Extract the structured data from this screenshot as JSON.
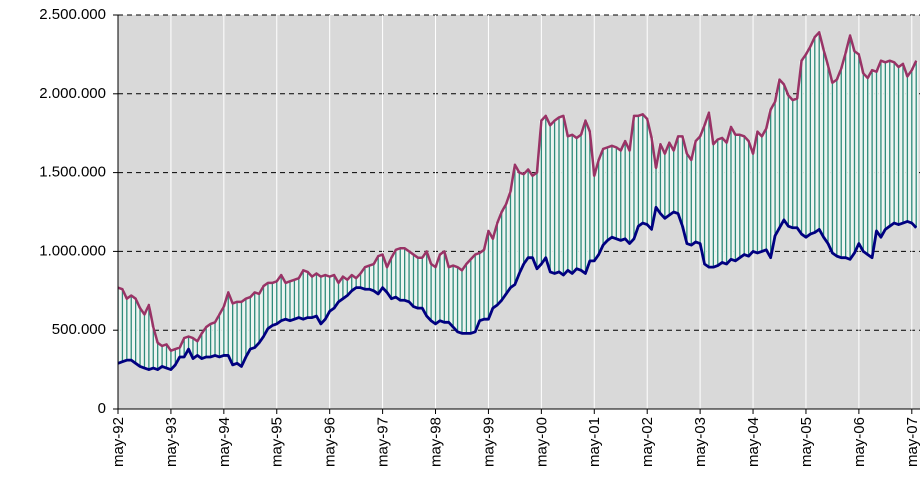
{
  "chart_data": {
    "type": "band-line",
    "categories": [
      "may-92",
      null,
      null,
      null,
      null,
      null,
      null,
      null,
      null,
      null,
      null,
      null,
      "may-93",
      null,
      null,
      null,
      null,
      null,
      null,
      null,
      null,
      null,
      null,
      null,
      "may-94",
      null,
      null,
      null,
      null,
      null,
      null,
      null,
      null,
      null,
      null,
      null,
      "may-95",
      null,
      null,
      null,
      null,
      null,
      null,
      null,
      null,
      null,
      null,
      null,
      "may-96",
      null,
      null,
      null,
      null,
      null,
      null,
      null,
      null,
      null,
      null,
      null,
      "may-97",
      null,
      null,
      null,
      null,
      null,
      null,
      null,
      null,
      null,
      null,
      null,
      "may-98",
      null,
      null,
      null,
      null,
      null,
      null,
      null,
      null,
      null,
      null,
      null,
      "may-99",
      null,
      null,
      null,
      null,
      null,
      null,
      null,
      null,
      null,
      null,
      null,
      "may-00",
      null,
      null,
      null,
      null,
      null,
      null,
      null,
      null,
      null,
      null,
      null,
      "may-01",
      null,
      null,
      null,
      null,
      null,
      null,
      null,
      null,
      null,
      null,
      null,
      "may-02",
      null,
      null,
      null,
      null,
      null,
      null,
      null,
      null,
      null,
      null,
      null,
      "may-03",
      null,
      null,
      null,
      null,
      null,
      null,
      null,
      null,
      null,
      null,
      null,
      "may-04",
      null,
      null,
      null,
      null,
      null,
      null,
      null,
      null,
      null,
      null,
      null,
      "may-05",
      null,
      null,
      null,
      null,
      null,
      null,
      null,
      null,
      null,
      null,
      null,
      "may-06",
      null,
      null,
      null,
      null,
      null,
      null,
      null,
      null,
      null,
      null,
      null,
      "may-07",
      null
    ],
    "series": [
      {
        "color": "#993366",
        "values": [
          770000,
          760000,
          700000,
          720000,
          700000,
          640000,
          600000,
          660000,
          520000,
          420000,
          400000,
          410000,
          370000,
          380000,
          390000,
          450000,
          460000,
          450000,
          430000,
          480000,
          520000,
          540000,
          550000,
          600000,
          650000,
          740000,
          670000,
          680000,
          680000,
          700000,
          710000,
          740000,
          730000,
          780000,
          800000,
          800000,
          810000,
          850000,
          800000,
          810000,
          820000,
          830000,
          880000,
          870000,
          840000,
          860000,
          840000,
          850000,
          840000,
          850000,
          800000,
          840000,
          820000,
          850000,
          830000,
          860000,
          900000,
          910000,
          920000,
          970000,
          980000,
          900000,
          960000,
          1010000,
          1020000,
          1020000,
          1000000,
          980000,
          960000,
          960000,
          1000000,
          920000,
          900000,
          980000,
          1000000,
          900000,
          910000,
          900000,
          880000,
          920000,
          950000,
          980000,
          990000,
          1010000,
          1130000,
          1080000,
          1180000,
          1250000,
          1300000,
          1380000,
          1550000,
          1500000,
          1490000,
          1520000,
          1480000,
          1500000,
          1830000,
          1860000,
          1800000,
          1830000,
          1850000,
          1860000,
          1730000,
          1740000,
          1720000,
          1740000,
          1830000,
          1760000,
          1480000,
          1580000,
          1650000,
          1660000,
          1670000,
          1660000,
          1640000,
          1700000,
          1640000,
          1860000,
          1860000,
          1870000,
          1840000,
          1720000,
          1530000,
          1680000,
          1620000,
          1690000,
          1640000,
          1730000,
          1730000,
          1620000,
          1580000,
          1700000,
          1730000,
          1800000,
          1880000,
          1680000,
          1710000,
          1720000,
          1690000,
          1790000,
          1740000,
          1740000,
          1730000,
          1700000,
          1620000,
          1760000,
          1730000,
          1780000,
          1900000,
          1950000,
          2090000,
          2060000,
          1990000,
          1960000,
          1970000,
          2210000,
          2250000,
          2300000,
          2360000,
          2390000,
          2280000,
          2180000,
          2070000,
          2090000,
          2160000,
          2260000,
          2370000,
          2270000,
          2250000,
          2130000,
          2100000,
          2150000,
          2140000,
          2210000,
          2200000,
          2210000,
          2200000,
          2170000,
          2190000,
          2110000,
          2150000,
          2210000
        ]
      },
      {
        "color": "#000080",
        "values": [
          290000,
          300000,
          310000,
          310000,
          290000,
          270000,
          260000,
          250000,
          260000,
          250000,
          270000,
          260000,
          250000,
          280000,
          330000,
          330000,
          380000,
          320000,
          340000,
          320000,
          330000,
          330000,
          340000,
          330000,
          340000,
          340000,
          280000,
          290000,
          270000,
          330000,
          380000,
          390000,
          420000,
          460000,
          510000,
          530000,
          540000,
          560000,
          570000,
          560000,
          570000,
          580000,
          570000,
          580000,
          580000,
          590000,
          540000,
          570000,
          620000,
          640000,
          680000,
          700000,
          720000,
          750000,
          770000,
          770000,
          760000,
          760000,
          750000,
          730000,
          770000,
          740000,
          700000,
          710000,
          690000,
          690000,
          680000,
          650000,
          640000,
          640000,
          590000,
          560000,
          540000,
          560000,
          550000,
          550000,
          520000,
          490000,
          480000,
          480000,
          480000,
          490000,
          560000,
          570000,
          570000,
          640000,
          660000,
          690000,
          730000,
          770000,
          790000,
          860000,
          920000,
          960000,
          960000,
          890000,
          920000,
          960000,
          870000,
          860000,
          870000,
          850000,
          880000,
          860000,
          890000,
          880000,
          860000,
          940000,
          940000,
          980000,
          1040000,
          1070000,
          1090000,
          1080000,
          1070000,
          1080000,
          1050000,
          1080000,
          1160000,
          1180000,
          1170000,
          1140000,
          1280000,
          1240000,
          1210000,
          1230000,
          1250000,
          1240000,
          1160000,
          1050000,
          1040000,
          1060000,
          1050000,
          920000,
          900000,
          900000,
          910000,
          930000,
          920000,
          950000,
          940000,
          960000,
          980000,
          970000,
          1000000,
          990000,
          1000000,
          1010000,
          960000,
          1100000,
          1150000,
          1200000,
          1160000,
          1150000,
          1150000,
          1110000,
          1090000,
          1110000,
          1120000,
          1140000,
          1090000,
          1050000,
          990000,
          970000,
          960000,
          960000,
          950000,
          990000,
          1050000,
          1000000,
          980000,
          960000,
          1130000,
          1090000,
          1140000,
          1160000,
          1180000,
          1170000,
          1180000,
          1190000,
          1180000,
          1150000
        ]
      }
    ],
    "band_color": "#2e8b7a",
    "ylim": [
      0,
      2500000
    ],
    "yticks": [
      0,
      {
        "value": 500000,
        "label": "500.000"
      },
      {
        "value": 1000000,
        "label": "1.000.000"
      },
      {
        "value": 1500000,
        "label": "1.500.000"
      },
      {
        "value": 2000000,
        "label": "2.000.000"
      },
      {
        "value": 2500000,
        "label": "2.500.000"
      }
    ],
    "grid": true
  }
}
